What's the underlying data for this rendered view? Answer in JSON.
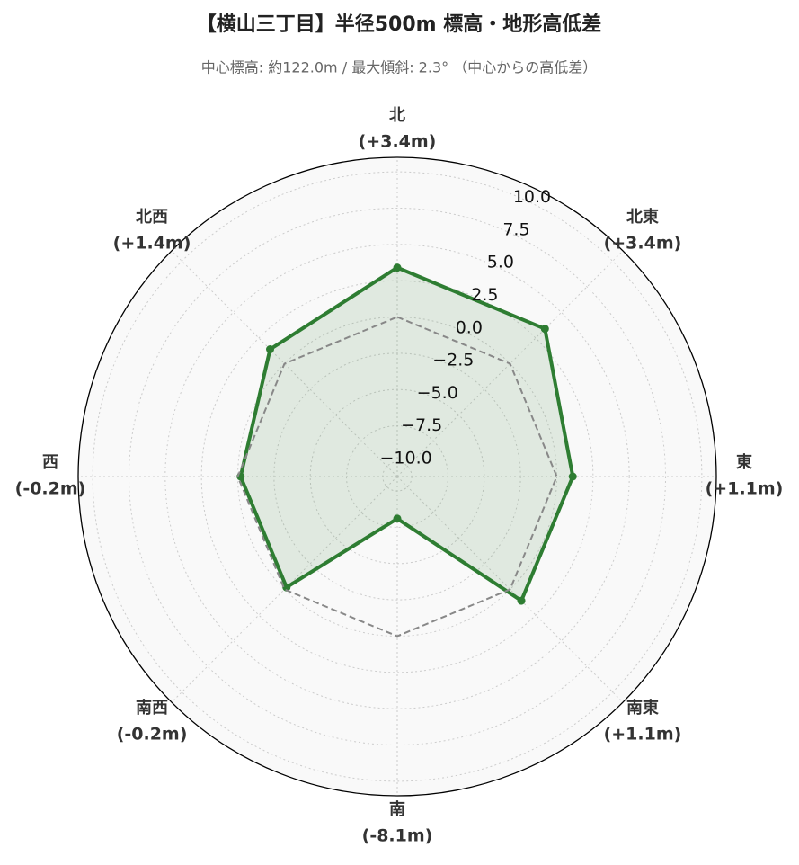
{
  "chart_data": {
    "type": "radar",
    "title": "【横山三丁目】半径500m 標高・地形高低差",
    "subtitle": "中心標高: 約122.0m / 最大傾斜: 2.3° （中心からの高低差）",
    "categories": [
      "北",
      "北東",
      "東",
      "南東",
      "南",
      "南西",
      "西",
      "北西"
    ],
    "series": [
      {
        "color": "#2e7d32",
        "fill": "#2e7d32",
        "values": [
          3.4,
          3.4,
          1.1,
          1.1,
          -8.1,
          -0.2,
          -0.2,
          1.4
        ],
        "value_labels": [
          "(+3.4m)",
          "(+3.4m)",
          "(+1.1m)",
          "(+1.1m)",
          "(-8.1m)",
          "(-0.2m)",
          "(-0.2m)",
          "(+1.4m)"
        ]
      },
      {
        "color": "#888888",
        "dashed": true,
        "values": [
          0,
          0,
          0,
          0,
          0,
          0,
          0,
          0
        ]
      }
    ],
    "ylim": [
      -11,
      11
    ],
    "yticks": [
      {
        "value": -10,
        "label": "−10.0"
      },
      {
        "value": -7.5,
        "label": "−7.5"
      },
      {
        "value": -5,
        "label": "−5.0"
      },
      {
        "value": -2.5,
        "label": "−2.5"
      },
      {
        "value": 0,
        "label": "0.0"
      },
      2.5,
      {
        "value": 5,
        "label": "5.0"
      },
      7.5,
      {
        "value": 10,
        "label": "10.0"
      }
    ],
    "grid": true
  }
}
